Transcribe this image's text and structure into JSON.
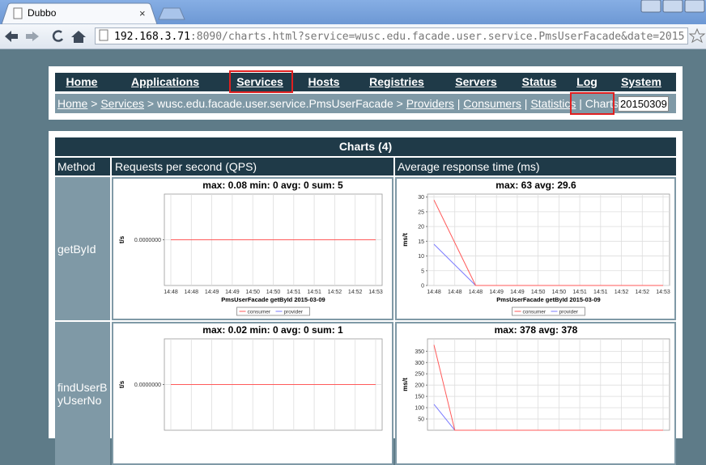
{
  "browser": {
    "tab": "Dubbo",
    "url_host": "192.168.3.71",
    "url_rest": ":8090/charts.html?service=wusc.edu.facade.user.service.PmsUserFacade&date=2015"
  },
  "nav": [
    "Home",
    "Applications",
    "Services",
    "Hosts",
    "Registries",
    "Servers",
    "Status",
    "Log",
    "System"
  ],
  "breadcrumb": [
    {
      "text": "Home",
      "link": true
    },
    {
      "text": " > "
    },
    {
      "text": "Services",
      "link": true
    },
    {
      "text": " > wusc.edu.facade.user.service.PmsUserFacade > "
    },
    {
      "text": "Providers",
      "link": true
    },
    {
      "text": " | "
    },
    {
      "text": "Consumers",
      "link": true
    },
    {
      "text": " | "
    },
    {
      "text": "Statistics",
      "link": true
    },
    {
      "text": " | "
    },
    {
      "text": "Charts :"
    }
  ],
  "date_input": "20150309",
  "table": {
    "title": "Charts (4)",
    "columns": [
      "Method",
      "Requests per second (QPS)",
      "Average response time (ms)"
    ],
    "rows": [
      {
        "method": "getById",
        "qps": {
          "type": "line",
          "title": "max: 0.08 min: 0 avg: 0 sum: 5",
          "ylabel": "t/s",
          "xlabel": "PmsUserFacade getById 2015-03-09",
          "categories": [
            "14:48",
            "14:48",
            "14:49",
            "14:49",
            "14:50",
            "14:50",
            "14:51",
            "14:51",
            "14:52",
            "14:52",
            "14:53"
          ],
          "ylim": [
            -1,
            1
          ],
          "yticks": [
            {
              "value": 0,
              "label": "0.0000000"
            }
          ],
          "series": [
            {
              "name": "consumer",
              "color": "#ff5a5a",
              "values": [
                0,
                0,
                0,
                0,
                0,
                0,
                0,
                0,
                0,
                0,
                0
              ]
            },
            {
              "name": "provider",
              "color": "#7b7bff",
              "values": [
                0,
                0,
                0,
                0,
                0,
                0,
                0,
                0,
                0,
                0,
                0
              ]
            }
          ]
        },
        "rt": {
          "type": "line",
          "title": "max: 63 avg: 29.6",
          "ylabel": "ms/t",
          "xlabel": "PmsUserFacade getById 2015-03-09",
          "categories": [
            "14:48",
            "14:48",
            "14:48",
            "14:49",
            "14:49",
            "14:50",
            "14:50",
            "14:51",
            "14:51",
            "14:52",
            "14:52",
            "14:53"
          ],
          "ylim": [
            0,
            31
          ],
          "yticks": [
            0,
            5,
            10,
            15,
            20,
            25,
            30
          ],
          "series": [
            {
              "name": "consumer",
              "color": "#ff5a5a",
              "values": [
                29,
                14.5,
                0,
                0,
                0,
                0,
                0,
                0,
                0,
                0,
                0,
                0
              ]
            },
            {
              "name": "provider",
              "color": "#7b7bff",
              "values": [
                14,
                7,
                0,
                0,
                0,
                0,
                0,
                0,
                0,
                0,
                0,
                0
              ]
            }
          ]
        }
      },
      {
        "method": "findUserByUserNo",
        "qps": {
          "type": "line",
          "title": "max: 0.02 min: 0 avg: 0 sum: 1",
          "ylabel": "t/s",
          "ylim": [
            -1,
            1
          ],
          "yticks": [
            {
              "value": 0,
              "label": "0.0000000"
            }
          ],
          "series": [
            {
              "color": "#ff5a5a",
              "values": [
                0,
                0,
                0,
                0,
                0,
                0,
                0,
                0,
                0,
                0,
                0
              ]
            },
            {
              "color": "#7b7bff",
              "values": [
                0,
                0,
                0,
                0,
                0,
                0,
                0,
                0,
                0,
                0,
                0
              ]
            }
          ]
        },
        "rt": {
          "type": "line",
          "title": "max: 378 avg: 378",
          "ylabel": "ms/t",
          "ylim": [
            0,
            405
          ],
          "yticks": [
            50,
            100,
            150,
            200,
            250,
            300,
            350
          ],
          "series": [
            {
              "color": "#ff5a5a",
              "values": [
                378,
                0,
                0,
                0,
                0,
                0,
                0,
                0,
                0,
                0,
                0,
                0
              ]
            },
            {
              "color": "#7b7bff",
              "values": [
                115,
                0,
                0,
                0,
                0,
                0,
                0,
                0,
                0,
                0,
                0,
                0
              ]
            }
          ]
        }
      }
    ]
  }
}
